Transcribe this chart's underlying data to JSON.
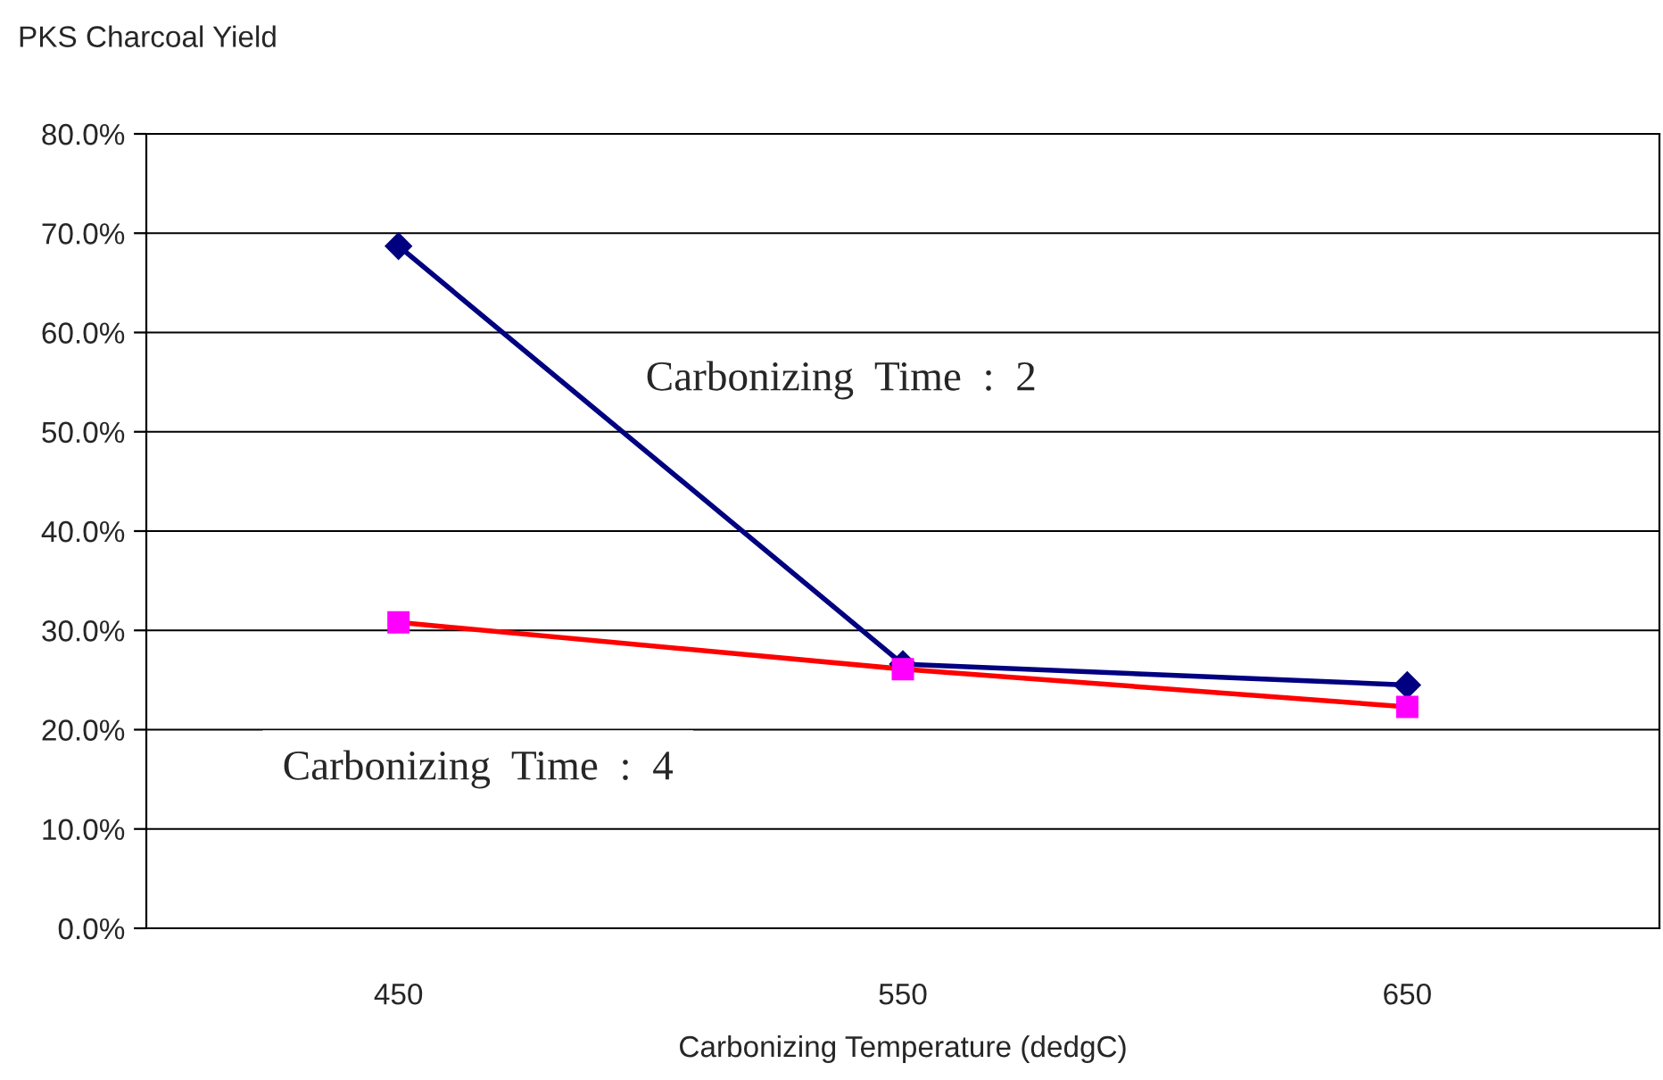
{
  "chart_data": {
    "type": "line",
    "ylabel": "PKS Charcoal Yield",
    "xlabel": "Carbonizing Temperature (dedgC)",
    "categories": [
      "450",
      "550",
      "650"
    ],
    "series": [
      {
        "name": "Carbonizing  Time  :  2",
        "color": "#000080",
        "marker": "diamond",
        "values": [
          68.7,
          26.6,
          24.5
        ]
      },
      {
        "name": "Carbonizing  Time  :  4",
        "color": "#ff0000",
        "colors": [
          "#ff00ff",
          "#ff00ff",
          "#ff00ff"
        ],
        "marker": "square",
        "values": [
          30.8,
          26.1,
          22.3
        ]
      }
    ],
    "ylim": [
      0,
      80
    ],
    "yticks": [
      {
        "value": 0,
        "label": "0.0%"
      },
      {
        "value": 10,
        "label": "10.0%"
      },
      {
        "value": 20,
        "label": "20.0%"
      },
      {
        "value": 30,
        "label": "30.0%"
      },
      {
        "value": 40,
        "label": "40.0%"
      },
      {
        "value": 50,
        "label": "50.0%"
      },
      {
        "value": 60,
        "label": "60.0%"
      },
      {
        "value": 70,
        "label": "70.0%"
      },
      {
        "value": 80,
        "label": "80.0%"
      }
    ],
    "grid": "y",
    "legend": false,
    "line_style": "solid"
  }
}
